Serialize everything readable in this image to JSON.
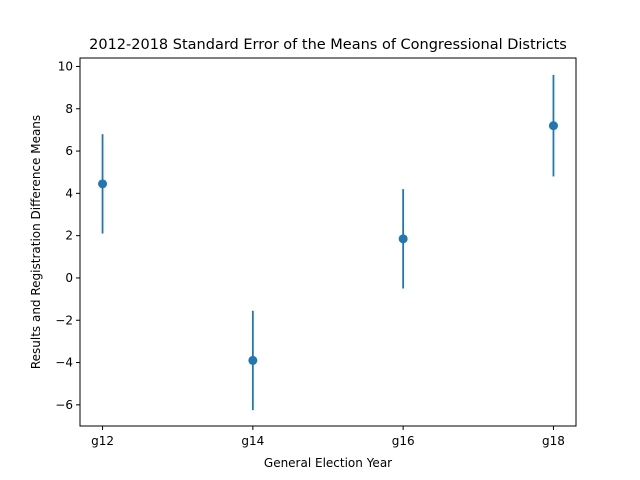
{
  "chart_data": {
    "type": "scatter",
    "title": "2012-2018 Standard Error of the Means of Congressional Districts",
    "xlabel": "General Election Year",
    "ylabel": "Results and Registration Difference Means",
    "categories": [
      "g12",
      "g14",
      "g16",
      "g18"
    ],
    "series": [
      {
        "values": [
          4.45,
          -3.9,
          1.85,
          7.2
        ],
        "errors": [
          2.35,
          2.35,
          2.35,
          2.4
        ]
      }
    ],
    "yticks": [
      -6,
      -4,
      -2,
      0,
      2,
      4,
      6,
      8,
      10
    ],
    "ylim": [
      -7.0,
      10.4
    ],
    "grid": false,
    "color": "#1f77b4"
  }
}
